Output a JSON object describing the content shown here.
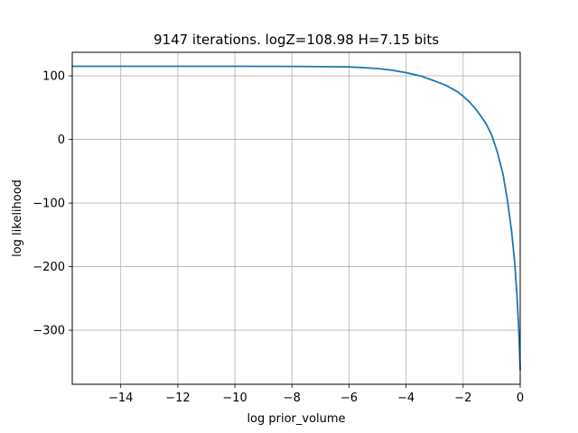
{
  "chart_data": {
    "type": "line",
    "title": "9147 iterations. logZ=108.98 H=7.15 bits",
    "xlabel": "log prior_volume",
    "ylabel": "log likelihood",
    "xlim": [
      -15.7,
      0.0
    ],
    "ylim": [
      -385,
      137
    ],
    "grid": true,
    "x_ticks": [
      -14,
      -12,
      -10,
      -8,
      -6,
      -4,
      -2,
      0
    ],
    "x_tick_labels": [
      "−14",
      "−12",
      "−10",
      "−8",
      "−6",
      "−4",
      "−2",
      "0"
    ],
    "y_ticks": [
      -300,
      -200,
      -100,
      0,
      100
    ],
    "y_tick_labels": [
      "−300",
      "−200",
      "−100",
      "0",
      "100"
    ],
    "series": [
      {
        "color": "#1f77b4",
        "x": [
          -15.7,
          -14,
          -12,
          -10,
          -8,
          -7,
          -6,
          -5.5,
          -5,
          -4.5,
          -4,
          -3.5,
          -3,
          -2.6,
          -2.2,
          -2.0,
          -1.8,
          -1.6,
          -1.4,
          -1.2,
          -1.0,
          -0.8,
          -0.6,
          -0.45,
          -0.3,
          -0.2,
          -0.12,
          -0.06,
          -0.02,
          0.0
        ],
        "y": [
          115,
          115,
          115,
          115,
          114.8,
          114.5,
          114,
          113,
          111.5,
          109,
          105,
          100,
          92,
          85,
          75,
          68,
          60,
          50,
          38,
          25,
          7,
          -20,
          -55,
          -95,
          -145,
          -190,
          -240,
          -290,
          -335,
          -362
        ]
      }
    ]
  }
}
